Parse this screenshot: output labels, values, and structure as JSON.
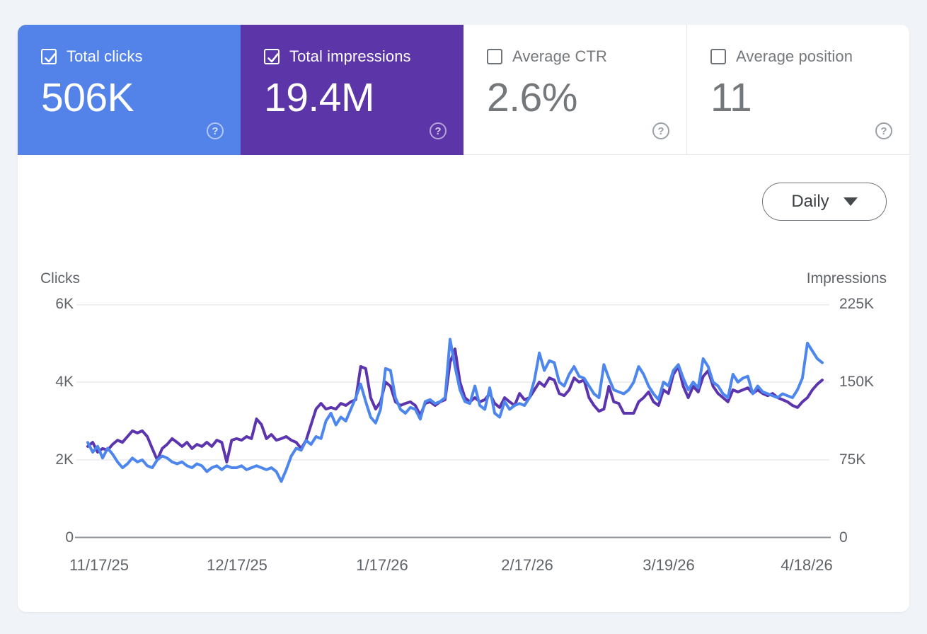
{
  "page_bg": "#f0f3f8",
  "icons": {
    "help_glyph": "?"
  },
  "metric_tiles": [
    {
      "label": "Total clicks",
      "value": "506K",
      "checked": true,
      "bg": "#5383e9"
    },
    {
      "label": "Total impressions",
      "value": "19.4M",
      "checked": true,
      "bg": "#5c35a9"
    },
    {
      "label": "Average CTR",
      "value": "2.6%",
      "checked": false
    },
    {
      "label": "Average position",
      "value": "11",
      "checked": false
    }
  ],
  "granularity_dropdown": {
    "value": "Daily"
  },
  "chart_data": {
    "type": "line",
    "grid": "horizontal",
    "left_axis": {
      "title": "Clicks",
      "max": 6000,
      "tick_labels_top_to_bottom": [
        "6K",
        "4K",
        "2K",
        "0"
      ]
    },
    "right_axis": {
      "title": "Impressions",
      "max": 225000,
      "tick_labels_top_to_bottom": [
        "225K",
        "150K",
        "75K",
        "0"
      ]
    },
    "x_axis": {
      "tick_labels": [
        "11/17/25",
        "12/17/25",
        "1/17/26",
        "2/17/26",
        "3/19/26",
        "4/18/26"
      ]
    },
    "series": [
      {
        "name": "Impressions",
        "axis": "right",
        "color": "#5b34ae",
        "values": [
          88000,
          92000,
          82500,
          86000,
          84500,
          90000,
          94000,
          92000,
          97500,
          103000,
          101000,
          103000,
          97500,
          86000,
          75000,
          86000,
          90000,
          95500,
          92000,
          88000,
          92000,
          86000,
          90000,
          88000,
          92000,
          88000,
          94000,
          92000,
          73000,
          94000,
          95500,
          94000,
          97500,
          95500,
          114500,
          109000,
          95500,
          99500,
          94000,
          95500,
          97500,
          94000,
          92000,
          86000,
          94000,
          109000,
          124000,
          129500,
          124000,
          125500,
          124000,
          129500,
          127500,
          131000,
          133000,
          165000,
          163000,
          135000,
          124000,
          131000,
          150000,
          146000,
          131000,
          127500,
          129500,
          131000,
          127500,
          118000,
          129500,
          131000,
          127500,
          131000,
          133000,
          169000,
          182000,
          150000,
          135000,
          131000,
          135000,
          131000,
          133000,
          139000,
          129500,
          125500,
          135000,
          131000,
          127500,
          139000,
          133000,
          135000,
          142500,
          150000,
          146000,
          154000,
          152000,
          139000,
          137000,
          142500,
          154000,
          150000,
          152000,
          135000,
          127500,
          122000,
          124000,
          146000,
          131000,
          129500,
          120000,
          120000,
          120000,
          131000,
          135000,
          140500,
          131000,
          127500,
          142500,
          139000,
          157500,
          165000,
          146000,
          135000,
          146000,
          140500,
          155500,
          161000,
          146000,
          139000,
          135000,
          131000,
          142500,
          140500,
          142500,
          144500,
          139000,
          142500,
          139000,
          137000,
          139000,
          135000,
          133000,
          131000,
          127500,
          125500,
          131000,
          135000,
          142500,
          148000,
          152000
        ]
      },
      {
        "name": "Clicks",
        "axis": "left",
        "color": "#4d86ec",
        "values": [
          2450,
          2200,
          2350,
          2050,
          2300,
          2150,
          1950,
          1800,
          1900,
          2050,
          1950,
          2000,
          1850,
          1800,
          2000,
          2100,
          2050,
          1950,
          1900,
          1950,
          1850,
          1800,
          1900,
          1850,
          1700,
          1800,
          1850,
          1750,
          1850,
          1800,
          1800,
          1850,
          1750,
          1800,
          1850,
          1800,
          1750,
          1800,
          1700,
          1450,
          1750,
          2100,
          2300,
          2250,
          2500,
          2400,
          2600,
          2550,
          3000,
          3200,
          2900,
          3100,
          3000,
          3300,
          3600,
          3950,
          3500,
          3100,
          2950,
          3300,
          4350,
          4300,
          3600,
          3300,
          3200,
          3350,
          3300,
          3050,
          3500,
          3550,
          3450,
          3500,
          3600,
          5100,
          4400,
          3800,
          3500,
          3450,
          3900,
          3400,
          3300,
          3850,
          3200,
          3100,
          3500,
          3300,
          3400,
          3450,
          3400,
          3600,
          4050,
          4750,
          4300,
          4550,
          4500,
          4000,
          3900,
          4200,
          4400,
          4150,
          4100,
          3900,
          3700,
          3600,
          4450,
          4100,
          3800,
          3750,
          3700,
          3800,
          4000,
          4400,
          4200,
          3900,
          3700,
          3550,
          4000,
          3900,
          4300,
          4450,
          4100,
          3800,
          4000,
          3850,
          4600,
          4400,
          4000,
          3900,
          3700,
          3600,
          4200,
          4000,
          4100,
          4150,
          3700,
          3900,
          3750,
          3700,
          3650,
          3600,
          3700,
          3650,
          3600,
          3800,
          4100,
          5000,
          4800,
          4600,
          4500
        ]
      }
    ]
  }
}
